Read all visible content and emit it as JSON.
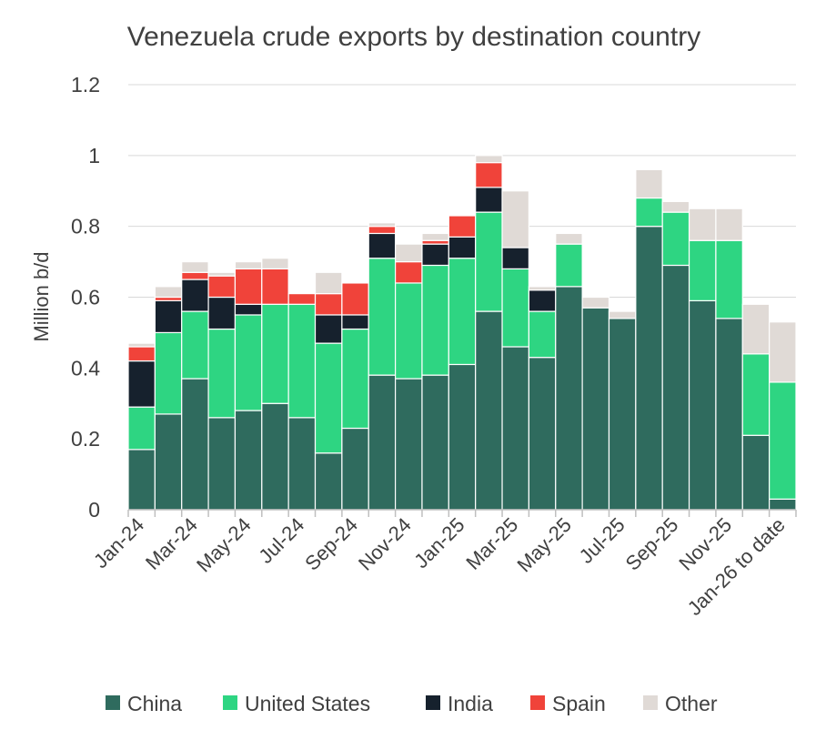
{
  "chart_data": {
    "type": "bar",
    "stacked": true,
    "title": "Venezuela crude exports by destination country",
    "xlabel": "",
    "ylabel": "Million b/d",
    "ylim": [
      0,
      1.2
    ],
    "yticks": [
      "0",
      "0.2",
      "0.4",
      "0.6",
      "0.8",
      "1",
      "1.2"
    ],
    "ytick_values": [
      0,
      0.2,
      0.4,
      0.6,
      0.8,
      1.0,
      1.2
    ],
    "grid": true,
    "legend_position": "bottom",
    "categories": [
      "Jan-24",
      "Feb-24",
      "Mar-24",
      "Apr-24",
      "May-24",
      "Jun-24",
      "Jul-24",
      "Aug-24",
      "Sep-24",
      "Oct-24",
      "Nov-24",
      "Dec-24",
      "Jan-25",
      "Feb-25",
      "Mar-25",
      "Apr-25",
      "May-25",
      "Jun-25",
      "Jul-25",
      "Aug-25",
      "Sep-25",
      "Oct-25",
      "Nov-25",
      "Dec-25",
      "Jan-26 to date"
    ],
    "xtick_labels": [
      "Jan-24",
      "",
      "Mar-24",
      "",
      "May-24",
      "",
      "Jul-24",
      "",
      "Sep-24",
      "",
      "Nov-24",
      "",
      "Jan-25",
      "",
      "Mar-25",
      "",
      "May-25",
      "",
      "Jul-25",
      "",
      "Sep-25",
      "",
      "Nov-25",
      "",
      "Jan-26 to date"
    ],
    "series": [
      {
        "name": "China",
        "color": "#2f6b5e",
        "values": [
          0.17,
          0.27,
          0.37,
          0.26,
          0.28,
          0.3,
          0.26,
          0.16,
          0.23,
          0.38,
          0.37,
          0.38,
          0.41,
          0.56,
          0.46,
          0.43,
          0.63,
          0.57,
          0.54,
          0.8,
          0.69,
          0.59,
          0.54,
          0.21,
          0.03
        ]
      },
      {
        "name": "United States",
        "color": "#2ed582",
        "values": [
          0.12,
          0.23,
          0.19,
          0.25,
          0.27,
          0.28,
          0.32,
          0.31,
          0.28,
          0.33,
          0.27,
          0.31,
          0.3,
          0.28,
          0.22,
          0.13,
          0.12,
          0,
          0,
          0.08,
          0.15,
          0.17,
          0.22,
          0.23,
          0.33
        ]
      },
      {
        "name": "India",
        "color": "#16212d",
        "values": [
          0.13,
          0.09,
          0.09,
          0.09,
          0.03,
          0,
          0,
          0.08,
          0.04,
          0.07,
          0,
          0.06,
          0.06,
          0.07,
          0.06,
          0.06,
          0,
          0,
          0,
          0,
          0,
          0,
          0,
          0,
          0
        ]
      },
      {
        "name": "Spain",
        "color": "#f0433a",
        "values": [
          0.04,
          0.01,
          0.02,
          0.06,
          0.1,
          0.1,
          0.03,
          0.06,
          0.09,
          0.02,
          0.06,
          0.01,
          0.06,
          0.07,
          0,
          0,
          0,
          0,
          0,
          0,
          0,
          0,
          0,
          0,
          0
        ]
      },
      {
        "name": "Other",
        "color": "#e0dad6",
        "values": [
          0.01,
          0.03,
          0.03,
          0.01,
          0.02,
          0.03,
          0,
          0.06,
          0,
          0.01,
          0.05,
          0.02,
          0,
          0.02,
          0.16,
          0.01,
          0.03,
          0.03,
          0.02,
          0.08,
          0.03,
          0.09,
          0.09,
          0.14,
          0.17
        ]
      }
    ]
  }
}
